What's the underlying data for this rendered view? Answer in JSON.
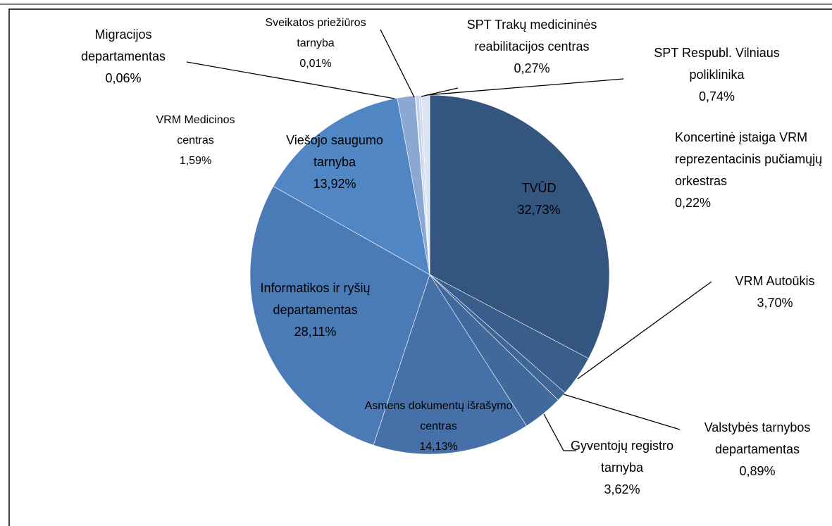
{
  "chart_data": {
    "type": "pie",
    "categories": [
      "TVŪD",
      "VRM Autoūkis",
      "Valstybės tarnybos departamentas",
      "Gyventojų registro tarnyba",
      "Asmens dokumentų išrašymo centras",
      "Informatikos ir ryšių departamentas",
      "Viešojo saugumo tarnyba",
      "VRM Medicinos centras",
      "Migracijos departamentas",
      "Sveikatos priežiūros tarnyba",
      "SPT  Trakų medicininės reabilitacijos centras",
      "Koncertinė įstaiga VRM reprezentacinis pučiamųjų orkestras",
      "SPT Respubl. Vilniaus poliklinika"
    ],
    "values": [
      32.73,
      3.7,
      0.89,
      3.62,
      14.13,
      28.11,
      13.92,
      1.59,
      0.06,
      0.01,
      0.27,
      0.22,
      0.74
    ],
    "value_labels": [
      "32,73%",
      "3,70%",
      "0,89%",
      "3,62%",
      "14,13%",
      "28,11%",
      "13,92%",
      "1,59%",
      "0,06%",
      "0,01%",
      "0,27%",
      "0,22%",
      "0,74%"
    ],
    "colors": [
      "#34557f",
      "#3a5e8b",
      "#3e6594",
      "#41699b",
      "#4571a8",
      "#4a7bb7",
      "#5186c5",
      "#8ba8d4",
      "#9db5dc",
      "#b2c4e4",
      "#c1d0ea",
      "#cfdaee",
      "#dce4f3"
    ]
  }
}
